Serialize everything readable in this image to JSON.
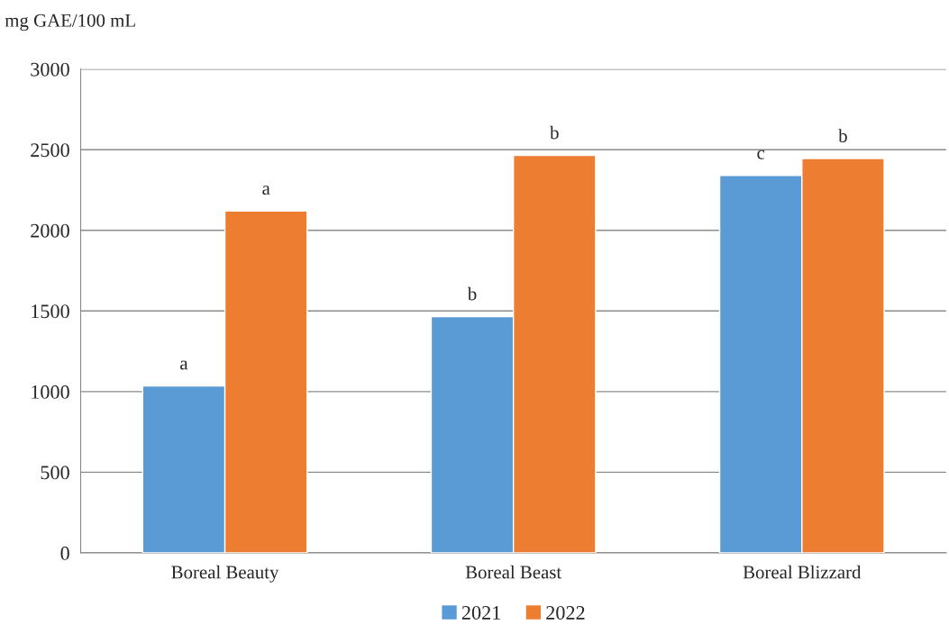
{
  "chart_data": {
    "type": "bar",
    "ylabel": "mg GAE/100 mL",
    "categories": [
      "Boreal Beauty",
      "Boreal Beast",
      "Boreal Blizzard"
    ],
    "series": [
      {
        "name": "2021",
        "color": "#5b9bd5",
        "values": [
          1035,
          1465,
          2340
        ],
        "value_labels": [
          "a",
          "b",
          "c"
        ]
      },
      {
        "name": "2022",
        "color": "#ed7d31",
        "values": [
          2120,
          2465,
          2445
        ],
        "value_labels": [
          "a",
          "b",
          "b"
        ]
      }
    ],
    "ylim": [
      0,
      3000
    ],
    "yticks": [
      0,
      500,
      1000,
      1500,
      2000,
      2500,
      3000
    ],
    "grid": "y",
    "legend": "bottom"
  }
}
